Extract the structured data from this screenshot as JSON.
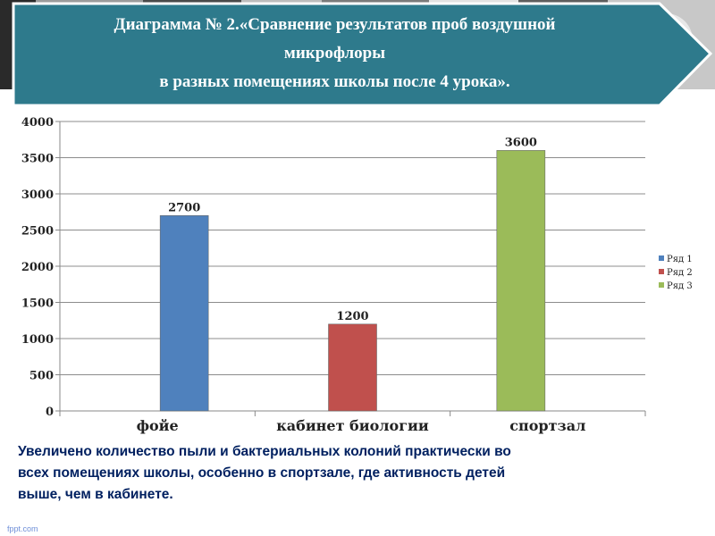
{
  "slide": {
    "title_lines": [
      "Диаграмма № 2.«Сравнение  результатов проб  воздушной",
      "микрофлоры",
      "в разных помещениях школы после 4 урока»."
    ],
    "caption_lines": [
      "Увеличено количество пыли и бактериальных колоний практически во",
      "всех помещениях школы, особенно в спортзале, где активность детей",
      "выше, чем в кабинете."
    ],
    "watermark": "fppt.com",
    "colors": {
      "banner": "#2e7a8c",
      "banner_border": "#ffffff",
      "text_caption": "#002060"
    }
  },
  "chart_data": {
    "type": "bar",
    "categories": [
      "фойе",
      "кабинет биологии",
      "спортзал"
    ],
    "series": [
      {
        "name": "Ряд 1",
        "color": "#4f81bd",
        "values": [
          2700,
          null,
          null
        ]
      },
      {
        "name": "Ряд 2",
        "color": "#c0504d",
        "values": [
          null,
          1200,
          null
        ]
      },
      {
        "name": "Ряд 3",
        "color": "#9bbb59",
        "values": [
          null,
          null,
          3600
        ]
      }
    ],
    "data_labels": [
      "2700",
      "1200",
      "3600"
    ],
    "yticks": [
      0,
      500,
      1000,
      1500,
      2000,
      2500,
      3000,
      3500,
      4000
    ],
    "ylim": [
      0,
      4000
    ],
    "grid": true,
    "legend": "right",
    "title": "",
    "xlabel": "",
    "ylabel": ""
  }
}
